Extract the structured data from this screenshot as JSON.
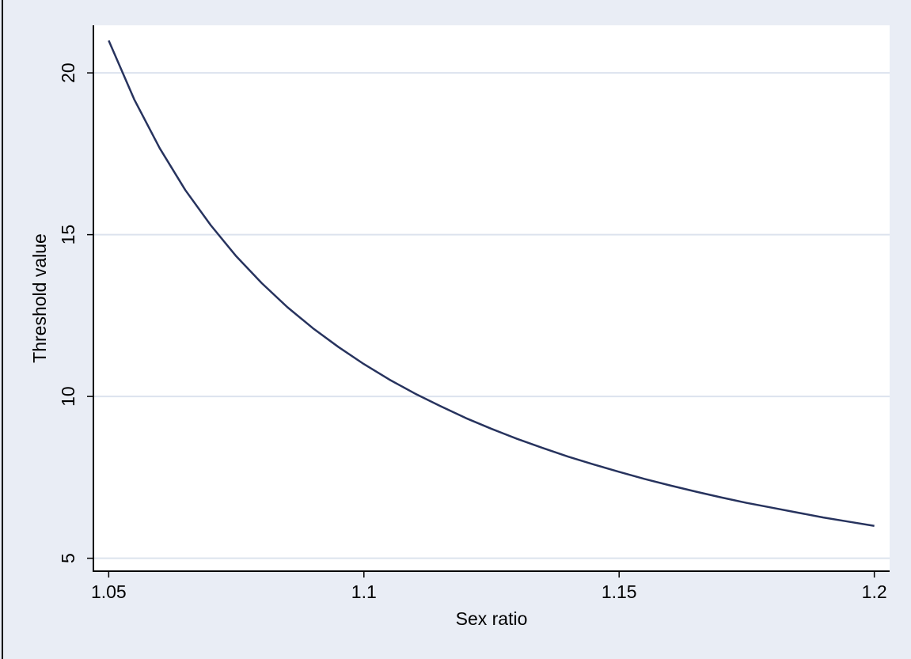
{
  "chart_data": {
    "type": "line",
    "x_label": "Sex ratio",
    "y_label": "Threshold value",
    "x": [
      1.05,
      1.055,
      1.06,
      1.065,
      1.07,
      1.075,
      1.08,
      1.085,
      1.09,
      1.095,
      1.1,
      1.105,
      1.11,
      1.115,
      1.12,
      1.125,
      1.13,
      1.135,
      1.14,
      1.145,
      1.15,
      1.155,
      1.16,
      1.165,
      1.17,
      1.175,
      1.18,
      1.185,
      1.19,
      1.195,
      1.2
    ],
    "series": [
      {
        "color": "#27335e",
        "values": [
          21.0,
          19.18,
          17.67,
          16.38,
          15.29,
          14.33,
          13.5,
          12.76,
          12.11,
          11.53,
          11.0,
          10.52,
          10.09,
          9.7,
          9.33,
          9.0,
          8.69,
          8.41,
          8.14,
          7.9,
          7.67,
          7.45,
          7.25,
          7.06,
          6.88,
          6.71,
          6.56,
          6.41,
          6.26,
          6.13,
          6.0
        ]
      }
    ],
    "xlim": [
      1.047,
      1.203
    ],
    "ylim": [
      4.6,
      21.47
    ],
    "xticks": [
      1.05,
      1.1,
      1.15,
      1.2
    ],
    "yticks": [
      5,
      10,
      15,
      20
    ],
    "grid": true
  }
}
